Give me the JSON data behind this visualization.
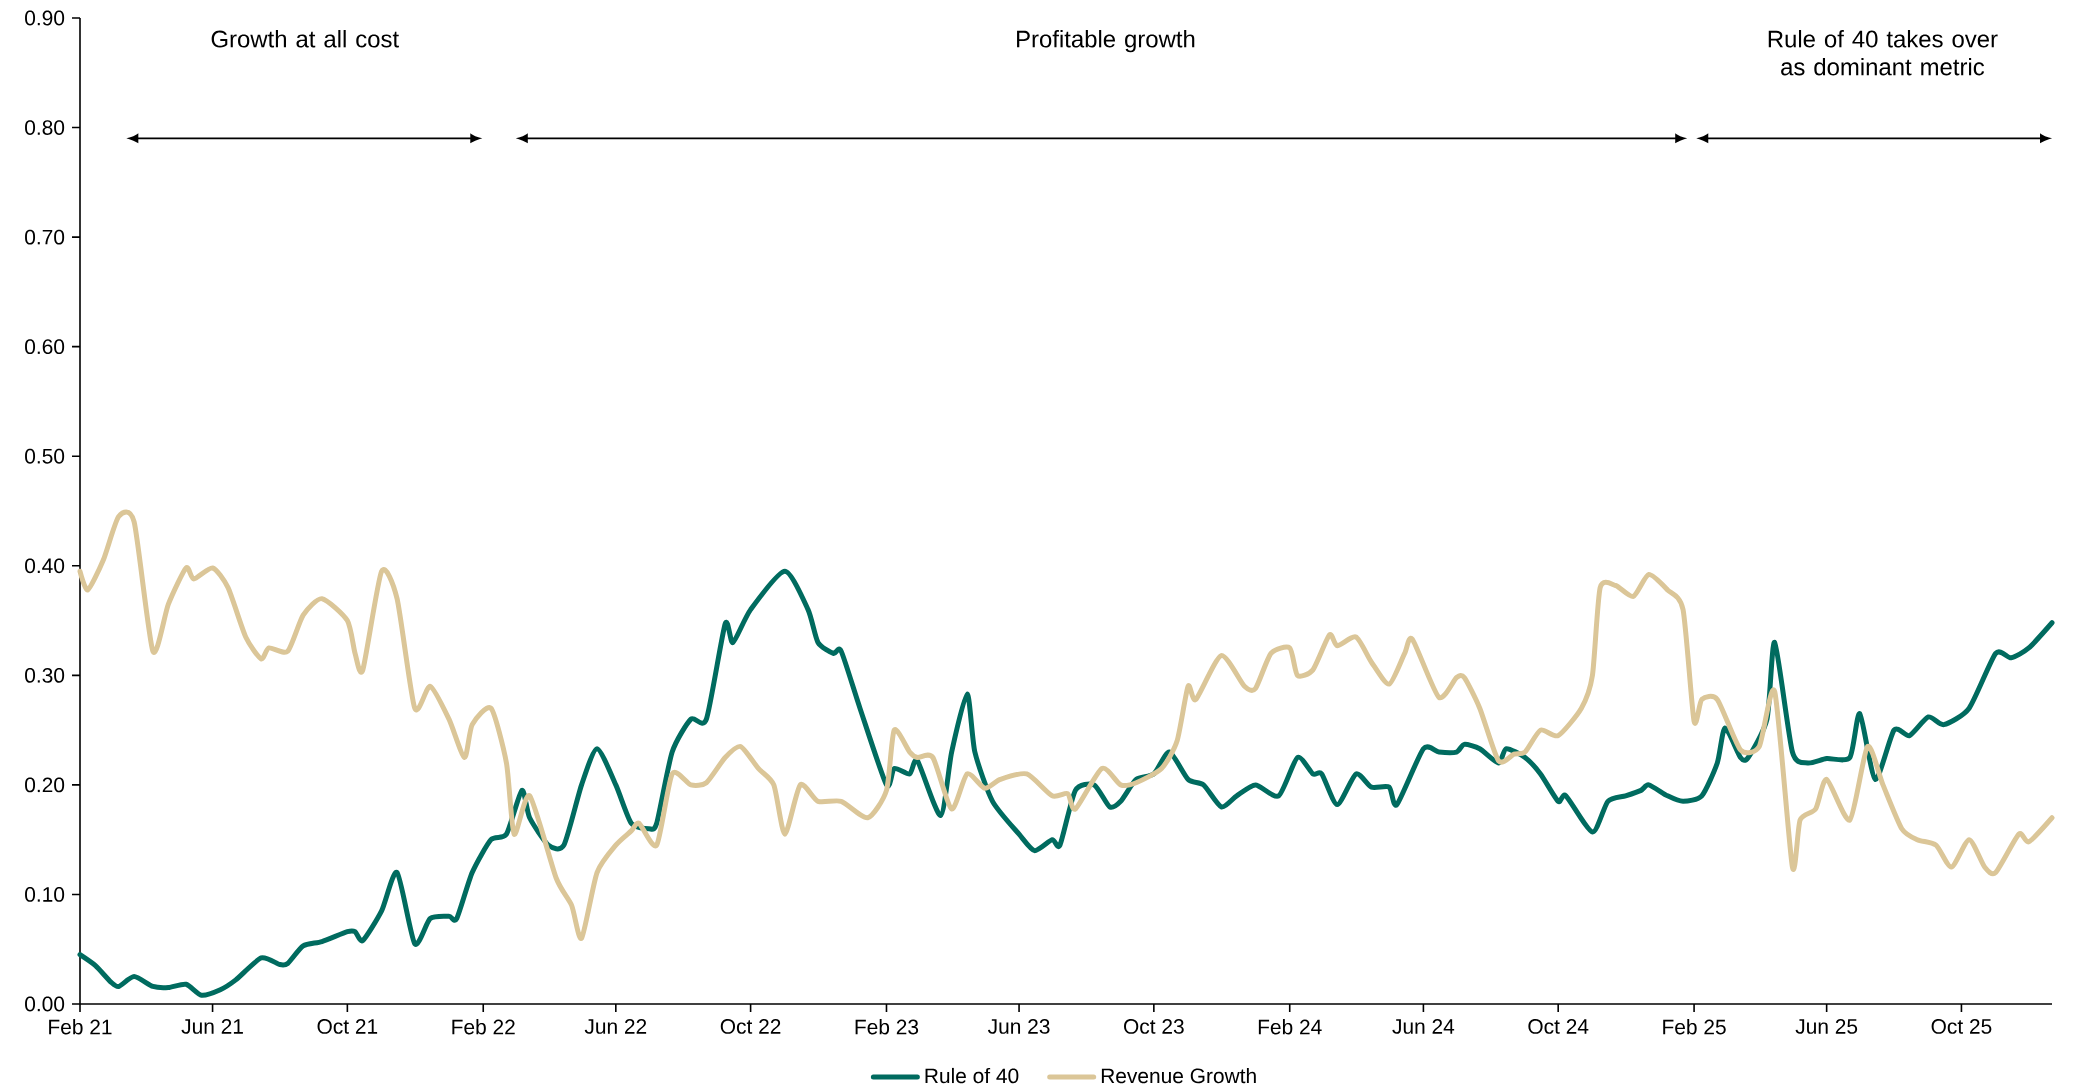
{
  "chart_data": {
    "type": "line",
    "annotations": [
      "Growth at all cost",
      "Profitable growth",
      "Rule of 40 takes over as dominant metric"
    ],
    "xlim": [
      "2021-02-01",
      "2025-12-22"
    ],
    "xticks": [
      {
        "value": "2021-02-01",
        "label": "Feb 21"
      },
      {
        "value": "2021-06-01",
        "label": "Jun 21"
      },
      {
        "value": "2021-10-01",
        "label": "Oct 21"
      },
      {
        "value": "2022-02-01",
        "label": "Feb 22"
      },
      {
        "value": "2022-06-01",
        "label": "Jun 22"
      },
      {
        "value": "2022-10-01",
        "label": "Oct 22"
      },
      {
        "value": "2023-02-01",
        "label": "Feb 23"
      },
      {
        "value": "2023-06-01",
        "label": "Jun 23"
      },
      {
        "value": "2023-10-01",
        "label": "Oct 23"
      },
      {
        "value": "2024-02-01",
        "label": "Feb 24"
      },
      {
        "value": "2024-06-01",
        "label": "Jun 24"
      },
      {
        "value": "2024-10-01",
        "label": "Oct 24"
      },
      {
        "value": "2025-02-01",
        "label": "Feb 25"
      },
      {
        "value": "2025-06-01",
        "label": "Jun 25"
      },
      {
        "value": "2025-10-01",
        "label": "Oct 25"
      }
    ],
    "ylim": [
      0,
      0.9
    ],
    "yticks": [
      {
        "value": 0,
        "label": "0.00"
      },
      {
        "value": 0.1,
        "label": "0.10"
      },
      {
        "value": 0.2,
        "label": "0.20"
      },
      {
        "value": 0.3,
        "label": "0.30"
      },
      {
        "value": 0.4,
        "label": "0.40"
      },
      {
        "value": 0.5,
        "label": "0.50"
      },
      {
        "value": 0.6,
        "label": "0.60"
      },
      {
        "value": 0.7,
        "label": "0.70"
      },
      {
        "value": 0.8,
        "label": "0.80"
      },
      {
        "value": 0.9,
        "label": "0.90"
      }
    ],
    "legend": "bottom",
    "series": [
      {
        "name": "Rule of 40",
        "color": "#006b5f",
        "x": [
          "2021-02-01",
          "2021-02-15",
          "2021-03-01",
          "2021-03-08",
          "2021-03-22",
          "2021-04-08",
          "2021-04-22",
          "2021-05-08",
          "2021-05-22",
          "2021-06-08",
          "2021-06-22",
          "2021-07-15",
          "2021-08-01",
          "2021-08-08",
          "2021-08-22",
          "2021-09-08",
          "2021-10-01",
          "2021-10-08",
          "2021-10-15",
          "2021-11-01",
          "2021-11-15",
          "2021-12-01",
          "2021-12-15",
          "2022-01-01",
          "2022-01-08",
          "2022-01-22",
          "2022-02-08",
          "2022-02-22",
          "2022-03-08",
          "2022-03-15",
          "2022-04-01",
          "2022-04-15",
          "2022-05-01",
          "2022-05-15",
          "2022-06-01",
          "2022-06-15",
          "2022-07-01",
          "2022-07-08",
          "2022-07-22",
          "2022-08-08",
          "2022-08-22",
          "2022-09-08",
          "2022-09-15",
          "2022-10-01",
          "2022-11-01",
          "2022-11-22",
          "2022-12-01",
          "2022-12-15",
          "2022-12-22",
          "2023-01-08",
          "2023-02-01",
          "2023-02-08",
          "2023-02-22",
          "2023-03-01",
          "2023-03-22",
          "2023-04-01",
          "2023-04-15",
          "2023-04-22",
          "2023-05-08",
          "2023-06-01",
          "2023-06-15",
          "2023-07-01",
          "2023-07-08",
          "2023-07-22",
          "2023-08-08",
          "2023-08-22",
          "2023-09-01",
          "2023-09-15",
          "2023-10-01",
          "2023-10-15",
          "2023-11-01",
          "2023-11-15",
          "2023-12-01",
          "2023-12-15",
          "2024-01-01",
          "2024-01-22",
          "2024-02-08",
          "2024-02-22",
          "2024-03-01",
          "2024-03-15",
          "2024-04-01",
          "2024-04-15",
          "2024-05-01",
          "2024-05-08",
          "2024-06-01",
          "2024-06-15",
          "2024-07-01",
          "2024-07-08",
          "2024-07-22",
          "2024-08-08",
          "2024-08-15",
          "2024-09-01",
          "2024-09-15",
          "2024-10-01",
          "2024-10-08",
          "2024-11-01",
          "2024-11-15",
          "2024-12-01",
          "2024-12-15",
          "2024-12-22",
          "2025-01-08",
          "2025-01-22",
          "2025-02-08",
          "2025-02-22",
          "2025-03-01",
          "2025-03-15",
          "2025-03-22",
          "2025-04-08",
          "2025-04-15",
          "2025-05-01",
          "2025-05-15",
          "2025-06-01",
          "2025-06-22",
          "2025-07-01",
          "2025-07-15",
          "2025-08-01",
          "2025-08-15",
          "2025-09-01",
          "2025-09-15",
          "2025-10-08",
          "2025-11-01",
          "2025-11-15",
          "2025-12-01",
          "2025-12-22"
        ],
        "values": [
          0.045,
          0.035,
          0.02,
          0.016,
          0.025,
          0.016,
          0.015,
          0.018,
          0.008,
          0.013,
          0.022,
          0.042,
          0.036,
          0.037,
          0.053,
          0.057,
          0.066,
          0.066,
          0.058,
          0.085,
          0.12,
          0.055,
          0.078,
          0.08,
          0.078,
          0.12,
          0.15,
          0.155,
          0.195,
          0.17,
          0.145,
          0.145,
          0.2,
          0.233,
          0.2,
          0.165,
          0.16,
          0.165,
          0.23,
          0.26,
          0.26,
          0.347,
          0.33,
          0.36,
          0.395,
          0.36,
          0.33,
          0.32,
          0.322,
          0.27,
          0.2,
          0.215,
          0.21,
          0.222,
          0.172,
          0.23,
          0.283,
          0.23,
          0.185,
          0.155,
          0.14,
          0.15,
          0.145,
          0.195,
          0.2,
          0.18,
          0.185,
          0.205,
          0.21,
          0.23,
          0.205,
          0.2,
          0.18,
          0.19,
          0.2,
          0.19,
          0.225,
          0.21,
          0.21,
          0.182,
          0.21,
          0.198,
          0.198,
          0.182,
          0.233,
          0.23,
          0.23,
          0.237,
          0.233,
          0.22,
          0.233,
          0.225,
          0.21,
          0.185,
          0.19,
          0.157,
          0.185,
          0.19,
          0.195,
          0.2,
          0.19,
          0.185,
          0.19,
          0.22,
          0.252,
          0.225,
          0.225,
          0.26,
          0.33,
          0.23,
          0.22,
          0.224,
          0.225,
          0.265,
          0.205,
          0.25,
          0.245,
          0.262,
          0.255,
          0.27,
          0.32,
          0.316,
          0.325,
          0.348
        ]
      },
      {
        "name": "Revenue Growth",
        "color": "#dbc698",
        "x": [
          "2021-02-01",
          "2021-02-08",
          "2021-02-22",
          "2021-03-08",
          "2021-03-22",
          "2021-04-08",
          "2021-04-22",
          "2021-05-08",
          "2021-05-15",
          "2021-06-01",
          "2021-06-15",
          "2021-07-01",
          "2021-07-15",
          "2021-07-22",
          "2021-08-08",
          "2021-08-22",
          "2021-09-08",
          "2021-10-01",
          "2021-10-08",
          "2021-10-15",
          "2021-11-01",
          "2021-11-15",
          "2021-12-01",
          "2021-12-15",
          "2022-01-01",
          "2022-01-15",
          "2022-01-22",
          "2022-02-08",
          "2022-02-22",
          "2022-03-01",
          "2022-03-15",
          "2022-04-08",
          "2022-04-22",
          "2022-05-01",
          "2022-05-15",
          "2022-06-01",
          "2022-06-15",
          "2022-06-22",
          "2022-07-08",
          "2022-07-22",
          "2022-08-08",
          "2022-08-22",
          "2022-09-08",
          "2022-09-22",
          "2022-10-08",
          "2022-10-22",
          "2022-11-01",
          "2022-11-15",
          "2022-12-01",
          "2022-12-22",
          "2023-01-15",
          "2023-02-01",
          "2023-02-08",
          "2023-02-22",
          "2023-03-01",
          "2023-03-15",
          "2023-04-01",
          "2023-04-15",
          "2023-05-01",
          "2023-05-15",
          "2023-06-08",
          "2023-07-01",
          "2023-07-15",
          "2023-07-22",
          "2023-08-15",
          "2023-09-01",
          "2023-09-15",
          "2023-10-08",
          "2023-10-22",
          "2023-11-01",
          "2023-11-08",
          "2023-12-01",
          "2023-12-22",
          "2024-01-01",
          "2024-01-15",
          "2024-02-01",
          "2024-02-08",
          "2024-02-22",
          "2024-03-08",
          "2024-03-15",
          "2024-04-01",
          "2024-04-15",
          "2024-05-01",
          "2024-05-15",
          "2024-05-22",
          "2024-06-15",
          "2024-07-01",
          "2024-07-08",
          "2024-07-22",
          "2024-08-08",
          "2024-08-22",
          "2024-09-01",
          "2024-09-15",
          "2024-10-01",
          "2024-10-22",
          "2024-11-01",
          "2024-11-08",
          "2024-11-22",
          "2024-12-08",
          "2024-12-22",
          "2025-01-08",
          "2025-01-22",
          "2025-02-01",
          "2025-02-08",
          "2025-02-22",
          "2025-03-15",
          "2025-04-01",
          "2025-04-15",
          "2025-05-01",
          "2025-05-08",
          "2025-05-22",
          "2025-06-01",
          "2025-06-22",
          "2025-07-08",
          "2025-07-22",
          "2025-08-08",
          "2025-08-22",
          "2025-09-08",
          "2025-09-22",
          "2025-10-08",
          "2025-10-22",
          "2025-11-01",
          "2025-11-22",
          "2025-12-01",
          "2025-12-22"
        ],
        "values": [
          0.395,
          0.378,
          0.405,
          0.445,
          0.44,
          0.322,
          0.365,
          0.398,
          0.388,
          0.398,
          0.38,
          0.335,
          0.315,
          0.325,
          0.322,
          0.355,
          0.37,
          0.35,
          0.32,
          0.305,
          0.395,
          0.37,
          0.27,
          0.29,
          0.26,
          0.225,
          0.255,
          0.27,
          0.22,
          0.155,
          0.19,
          0.115,
          0.09,
          0.06,
          0.12,
          0.145,
          0.158,
          0.165,
          0.145,
          0.21,
          0.2,
          0.202,
          0.225,
          0.235,
          0.215,
          0.2,
          0.155,
          0.2,
          0.185,
          0.185,
          0.17,
          0.195,
          0.25,
          0.23,
          0.225,
          0.225,
          0.178,
          0.21,
          0.197,
          0.205,
          0.21,
          0.19,
          0.192,
          0.178,
          0.215,
          0.2,
          0.202,
          0.215,
          0.24,
          0.29,
          0.278,
          0.318,
          0.29,
          0.288,
          0.32,
          0.325,
          0.3,
          0.305,
          0.337,
          0.327,
          0.335,
          0.312,
          0.292,
          0.32,
          0.333,
          0.28,
          0.298,
          0.298,
          0.27,
          0.222,
          0.228,
          0.23,
          0.25,
          0.245,
          0.27,
          0.3,
          0.38,
          0.382,
          0.372,
          0.392,
          0.378,
          0.36,
          0.258,
          0.278,
          0.278,
          0.232,
          0.235,
          0.285,
          0.125,
          0.168,
          0.178,
          0.205,
          0.168,
          0.235,
          0.2,
          0.16,
          0.15,
          0.145,
          0.125,
          0.15,
          0.125,
          0.12,
          0.155,
          0.148,
          0.17
        ]
      }
    ]
  }
}
